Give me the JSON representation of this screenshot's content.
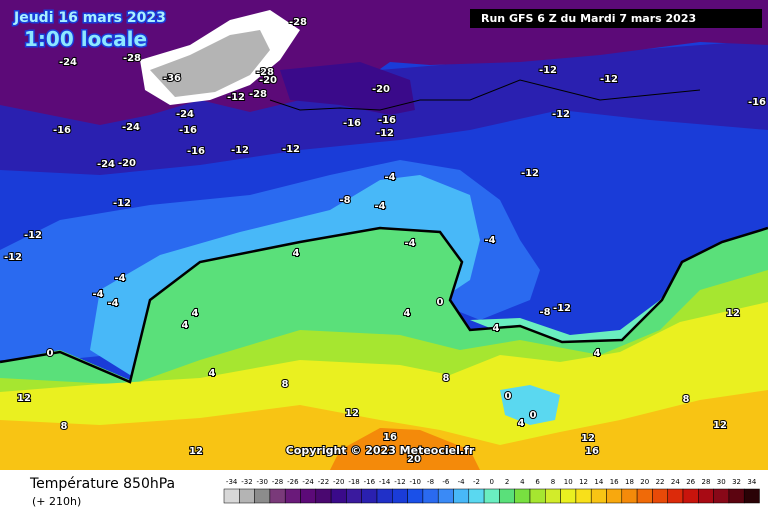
{
  "header": {
    "date": "Jeudi 16 mars 2023",
    "time": "1:00 locale",
    "run": "Run GFS 6 Z du Mardi 7 mars 2023"
  },
  "copyright": "Copyright © 2023 Meteociel.fr",
  "footer": {
    "title": "Température 850hPa",
    "lead": "(+ 210h)"
  },
  "scale": {
    "values": [
      -34,
      -32,
      -30,
      -28,
      -26,
      -24,
      -22,
      -20,
      -18,
      -16,
      -14,
      -12,
      -10,
      -8,
      -6,
      -4,
      -2,
      0,
      2,
      4,
      6,
      8,
      10,
      12,
      14,
      16,
      18,
      20,
      22,
      24,
      26,
      28,
      30,
      32,
      34
    ],
    "colors": [
      "#d8d8d8",
      "#b4b4b4",
      "#8c8c8c",
      "#7a3a7a",
      "#6a1a7a",
      "#5c0a78",
      "#4a0870",
      "#3a0a8a",
      "#3a1a9e",
      "#2a20b0",
      "#2030c8",
      "#1a3cd8",
      "#1a50e8",
      "#2a6af0",
      "#3a8af6",
      "#48b8f8",
      "#5ad8f0",
      "#6aeec0",
      "#5ae07a",
      "#78e040",
      "#a6e630",
      "#d2ec2a",
      "#eaf020",
      "#f8e01a",
      "#f8c414",
      "#f8a80e",
      "#f48a0a",
      "#f06a08",
      "#e84a08",
      "#dc2a0a",
      "#c8140c",
      "#a80a14",
      "#880818",
      "#5c0410",
      "#2a0206"
    ]
  },
  "map_labels": [
    -28,
    -24,
    -28,
    -36,
    -28,
    -20,
    -12,
    -28,
    -20,
    -24,
    -16,
    -24,
    -16,
    -16,
    -16,
    -12,
    -16,
    -12,
    -12,
    -24,
    -20,
    -12,
    -8,
    -4,
    -4,
    -12,
    -12,
    -12,
    -16,
    -12,
    -12,
    -12,
    -4,
    -4,
    -4,
    4,
    4,
    4,
    4,
    4,
    0,
    -4,
    -4,
    4,
    0,
    8,
    8,
    0,
    0,
    4,
    12,
    12,
    16,
    20,
    12,
    16,
    12,
    8,
    12,
    12,
    8,
    4,
    -12,
    -8
  ]
}
